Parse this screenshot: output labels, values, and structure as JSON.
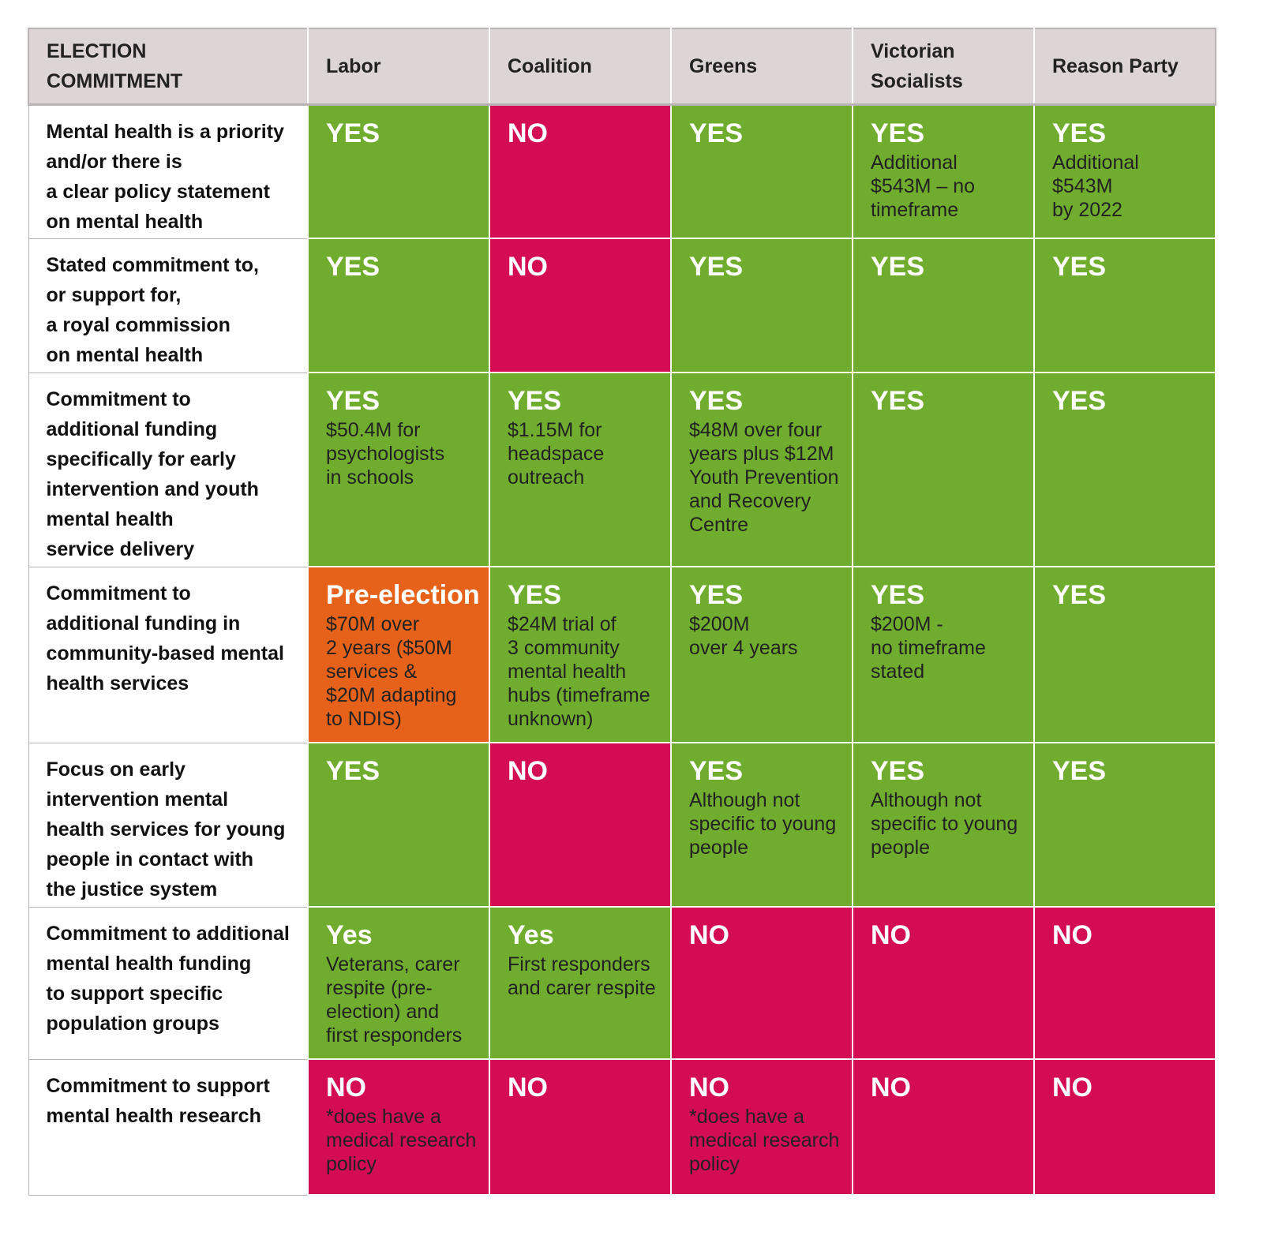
{
  "header": {
    "commitment_label": "ELECTION\nCOMMITMENT",
    "parties": [
      "Labor",
      "Coalition",
      "Greens",
      "Victorian\nSocialists",
      "Reason Party"
    ]
  },
  "colors": {
    "yes": "#70ad2f",
    "no": "#d40c54",
    "pre_election": "#e6621b",
    "header_bg": "#ddd5d5"
  },
  "rows": [
    {
      "commitment": "Mental health is a priority\nand/or there is\na clear policy statement\non mental health",
      "cells": [
        {
          "status": "green",
          "verdict": "YES",
          "note": ""
        },
        {
          "status": "red",
          "verdict": "NO",
          "note": ""
        },
        {
          "status": "green",
          "verdict": "YES",
          "note": ""
        },
        {
          "status": "green",
          "verdict": "YES",
          "note": "Additional\n$543M – no\ntimeframe"
        },
        {
          "status": "green",
          "verdict": "YES",
          "note": "Additional\n$543M\nby 2022"
        }
      ]
    },
    {
      "commitment": "Stated commitment to,\nor support for,\na royal commission\non mental health",
      "cells": [
        {
          "status": "green",
          "verdict": "YES",
          "note": ""
        },
        {
          "status": "red",
          "verdict": "NO",
          "note": ""
        },
        {
          "status": "green",
          "verdict": "YES",
          "note": ""
        },
        {
          "status": "green",
          "verdict": "YES",
          "note": ""
        },
        {
          "status": "green",
          "verdict": "YES",
          "note": ""
        }
      ]
    },
    {
      "commitment": "Commitment to\nadditional funding\nspecifically for early\nintervention and youth\nmental health\nservice delivery",
      "cells": [
        {
          "status": "green",
          "verdict": "YES",
          "note": "$50.4M for\npsychologists\nin schools"
        },
        {
          "status": "green",
          "verdict": "YES",
          "note": "$1.15M for\nheadspace\noutreach"
        },
        {
          "status": "green",
          "verdict": "YES",
          "note": "$48M over four\nyears plus $12M\nYouth Prevention\nand Recovery\nCentre"
        },
        {
          "status": "green",
          "verdict": "YES",
          "note": ""
        },
        {
          "status": "green",
          "verdict": "YES",
          "note": ""
        }
      ]
    },
    {
      "commitment": "Commitment to\nadditional funding in\ncommunity-based mental\nhealth services",
      "cells": [
        {
          "status": "orange",
          "verdict": "Pre-election",
          "note": "$70M over\n2 years ($50M\nservices &\n$20M adapting\nto NDIS)"
        },
        {
          "status": "green",
          "verdict": "YES",
          "note": "$24M trial of\n3 community\nmental health\nhubs (timeframe\nunknown)"
        },
        {
          "status": "green",
          "verdict": "YES",
          "note": "$200M\nover 4 years"
        },
        {
          "status": "green",
          "verdict": "YES",
          "note": "$200M -\nno timeframe\nstated"
        },
        {
          "status": "green",
          "verdict": "YES",
          "note": ""
        }
      ]
    },
    {
      "commitment": "Focus on early\nintervention mental\nhealth services for young\npeople in contact with\nthe justice system",
      "cells": [
        {
          "status": "green",
          "verdict": "YES",
          "note": ""
        },
        {
          "status": "red",
          "verdict": "NO",
          "note": ""
        },
        {
          "status": "green",
          "verdict": "YES",
          "note": "Although not\nspecific to young\npeople"
        },
        {
          "status": "green",
          "verdict": "YES",
          "note": "Although not\nspecific to young\npeople"
        },
        {
          "status": "green",
          "verdict": "YES",
          "note": ""
        }
      ]
    },
    {
      "commitment": "Commitment to additional\nmental health funding\nto support specific\npopulation groups",
      "cells": [
        {
          "status": "green",
          "verdict": "Yes",
          "note": "Veterans, carer\nrespite (pre-\nelection) and\nfirst responders"
        },
        {
          "status": "green",
          "verdict": "Yes",
          "note": "First responders\nand carer respite"
        },
        {
          "status": "red",
          "verdict": "NO",
          "note": ""
        },
        {
          "status": "red",
          "verdict": "NO",
          "note": ""
        },
        {
          "status": "red",
          "verdict": "NO",
          "note": ""
        }
      ]
    },
    {
      "commitment": "Commitment to support\nmental health research",
      "cells": [
        {
          "status": "red",
          "verdict": "NO",
          "note": "*does have a\nmedical research\npolicy"
        },
        {
          "status": "red",
          "verdict": "NO",
          "note": ""
        },
        {
          "status": "red",
          "verdict": "NO",
          "note": "*does have a\nmedical research\npolicy"
        },
        {
          "status": "red",
          "verdict": "NO",
          "note": ""
        },
        {
          "status": "red",
          "verdict": "NO",
          "note": ""
        }
      ]
    }
  ]
}
